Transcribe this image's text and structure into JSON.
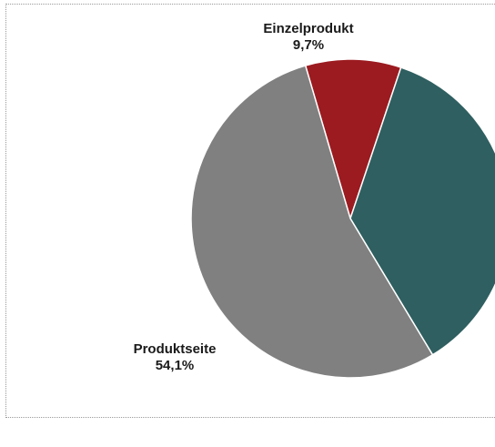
{
  "chart_data": {
    "type": "pie",
    "title": "",
    "legend": "none",
    "slices": [
      {
        "label": "Einzelprodukt",
        "value": 9.7,
        "value_label": "9,7%",
        "color": "#9b1b20"
      },
      {
        "label": "",
        "value": 36.2,
        "value_label": "",
        "color": "#2f5f60"
      },
      {
        "label": "Produktseite",
        "value": 54.1,
        "value_label": "54,1%",
        "color": "#808080"
      }
    ]
  }
}
